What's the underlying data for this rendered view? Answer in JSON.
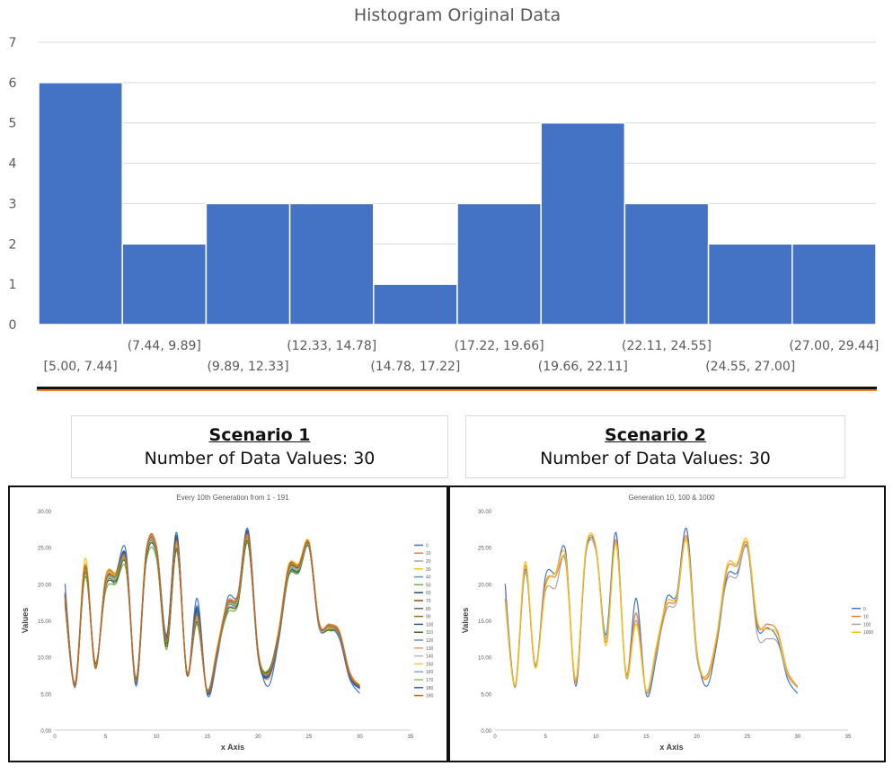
{
  "chart_data": [
    {
      "type": "bar",
      "title": "Histogram Original Data",
      "categories": [
        "[5.00, 7.44]",
        "(7.44, 9.89]",
        "(9.89, 12.33]",
        "(12.33, 14.78]",
        "(14.78, 17.22]",
        "(17.22, 19.66]",
        "(19.66, 22.11]",
        "(22.11, 24.55]",
        "(24.55, 27.00]",
        "(27.00, 29.44]"
      ],
      "values": [
        6,
        2,
        3,
        3,
        1,
        3,
        5,
        3,
        2,
        2
      ],
      "ylim": [
        0,
        7
      ],
      "yticks": [
        0,
        1,
        2,
        3,
        4,
        5,
        6,
        7
      ],
      "bar_color": "#4472c4",
      "grid": true,
      "legend": "none"
    },
    {
      "type": "line",
      "title": "Every 10th Generation from 1 - 191",
      "xlabel": "x Axis",
      "ylabel": "Values",
      "xlim": [
        0,
        35
      ],
      "ylim": [
        0,
        30
      ],
      "xticks": [
        0,
        5,
        10,
        15,
        20,
        25,
        30,
        35
      ],
      "yticks": [
        "0.00",
        "5.00",
        "10.00",
        "15.00",
        "20.00",
        "25.00",
        "30.00"
      ],
      "legend": "right",
      "x": [
        1,
        2,
        3,
        4,
        5,
        6,
        7,
        8,
        9,
        10,
        11,
        12,
        13,
        14,
        15,
        16,
        17,
        18,
        19,
        20,
        21,
        22,
        23,
        24,
        25,
        26,
        27,
        28,
        29,
        30
      ],
      "series": [
        {
          "name": "0",
          "color": "#4472c4",
          "values": [
            20,
            6,
            22,
            8.5,
            21,
            21.5,
            24.5,
            6,
            24,
            25,
            13,
            27,
            7.5,
            18,
            4.8,
            10,
            18,
            18.5,
            27.5,
            11,
            6,
            12,
            21,
            21.5,
            25,
            14,
            14,
            12.5,
            7,
            5
          ]
        },
        {
          "name": "10",
          "color": "#ed7d31",
          "values": [
            18,
            6,
            22.5,
            8.8,
            20,
            21,
            23,
            6.5,
            24.5,
            25,
            12,
            26,
            7.8,
            16,
            5.2,
            11,
            17,
            18,
            26.5,
            10.5,
            7,
            12.5,
            22,
            22.5,
            25.5,
            14.5,
            14.5,
            13.5,
            8,
            6
          ]
        },
        {
          "name": "20",
          "color": "#a5a5a5",
          "values": [
            19,
            5.8,
            21.5,
            9,
            19.5,
            20.5,
            23.5,
            7,
            24,
            24.5,
            12.5,
            25.5,
            8,
            15.5,
            5,
            10.5,
            16.5,
            17.5,
            26.8,
            10,
            7.5,
            13,
            21.5,
            22,
            25.2,
            14,
            14,
            13,
            7.5,
            5.8
          ]
        },
        {
          "name": "30",
          "color": "#ffc000",
          "values": [
            17.5,
            6.2,
            23.5,
            8.5,
            21,
            21.5,
            22.5,
            6.8,
            24.5,
            24.8,
            11.5,
            25,
            7.5,
            15,
            5.4,
            11.5,
            17.5,
            18.2,
            26,
            10.8,
            8,
            13.5,
            22.5,
            22.8,
            25.8,
            14.8,
            13.8,
            13.2,
            7.8,
            6.2
          ]
        },
        {
          "name": "40",
          "color": "#5b9bd5",
          "values": [
            18.5,
            6,
            22,
            8.8,
            20.5,
            20,
            23,
            6,
            23.5,
            24,
            12,
            26.5,
            7.5,
            17,
            5,
            10.5,
            17,
            17.8,
            27,
            10.2,
            7.2,
            12.2,
            21.2,
            21.8,
            25.4,
            14.2,
            14.2,
            12.8,
            7.2,
            5.6
          ]
        },
        {
          "name": "50",
          "color": "#70ad47",
          "values": [
            17,
            6.5,
            21,
            9.2,
            19,
            20,
            22,
            7.2,
            23,
            23.5,
            11,
            24.5,
            8,
            14.5,
            5.5,
            11,
            16,
            17,
            25.5,
            10.5,
            8.2,
            13,
            21,
            21.5,
            25,
            14.4,
            13.6,
            13,
            7.6,
            6
          ]
        },
        {
          "name": "60",
          "color": "#264478",
          "values": [
            18.2,
            6.2,
            22.2,
            8.6,
            20.2,
            21,
            23.6,
            6.4,
            24.2,
            24.8,
            12.4,
            26.2,
            7.6,
            16.5,
            5,
            10.8,
            17.2,
            18,
            26.6,
            10.4,
            7.4,
            12.6,
            21.8,
            22.2,
            25.3,
            14.3,
            14.3,
            13.1,
            7.4,
            5.8
          ]
        },
        {
          "name": "70",
          "color": "#9e480e",
          "values": [
            17.8,
            6,
            22.6,
            8.4,
            20.8,
            21.2,
            23.2,
            6.6,
            24.6,
            25.2,
            12.2,
            25.8,
            7.8,
            15.8,
            5.2,
            11.2,
            17.4,
            18.4,
            26.9,
            10.6,
            7.6,
            12.8,
            22.2,
            22.6,
            25.6,
            14.6,
            14.4,
            13.4,
            7.8,
            6
          ]
        },
        {
          "name": "80",
          "color": "#636363",
          "values": [
            18.8,
            5.9,
            21.8,
            8.9,
            19.8,
            20.6,
            23.4,
            6.8,
            23.8,
            24.4,
            12.6,
            25.6,
            7.9,
            15.2,
            5.1,
            10.6,
            16.8,
            17.6,
            26.4,
            10.3,
            7.8,
            12.9,
            21.4,
            21.9,
            25.1,
            14.1,
            14.1,
            13,
            7.5,
            5.9
          ]
        },
        {
          "name": "90",
          "color": "#997300",
          "values": [
            18.4,
            6.3,
            22.4,
            8.7,
            20.4,
            21.4,
            22.8,
            6.7,
            24.4,
            24.9,
            11.8,
            25.4,
            7.7,
            15.6,
            5.3,
            11.3,
            17.6,
            18.1,
            26.2,
            10.7,
            7.9,
            13.2,
            22.4,
            22.4,
            25.7,
            14.7,
            14,
            13.3,
            7.7,
            6.1
          ]
        },
        {
          "name": "100",
          "color": "#255e91",
          "values": [
            18.6,
            6.1,
            22.1,
            8.6,
            20.1,
            20.9,
            23.8,
            6.3,
            24.3,
            24.7,
            12.8,
            26.6,
            7.6,
            16.8,
            5,
            10.7,
            17.1,
            17.9,
            27.2,
            10.1,
            7.3,
            12.4,
            21.6,
            22.1,
            25.5,
            14.4,
            14.2,
            12.9,
            7.3,
            5.7
          ]
        },
        {
          "name": "110",
          "color": "#43682b",
          "values": [
            17.6,
            6.4,
            21.6,
            9.1,
            19.6,
            20.3,
            22.6,
            7,
            23.4,
            24.2,
            11.4,
            24.8,
            7.9,
            14.8,
            5.4,
            11.1,
            16.4,
            17.3,
            25.8,
            10.4,
            8,
            13.1,
            21.3,
            21.7,
            25.1,
            14.3,
            13.7,
            13.1,
            7.6,
            6
          ]
        },
        {
          "name": "120",
          "color": "#698ed0",
          "values": [
            18.1,
            6.2,
            22.3,
            8.7,
            20.3,
            21.1,
            23.3,
            6.5,
            24.1,
            24.6,
            12.1,
            25.9,
            7.7,
            15.9,
            5.1,
            10.9,
            17.3,
            18,
            26.7,
            10.5,
            7.5,
            12.7,
            21.9,
            22.3,
            25.4,
            14.5,
            14.3,
            13.2,
            7.5,
            5.9
          ]
        },
        {
          "name": "130",
          "color": "#f1975a",
          "values": [
            18.3,
            6.1,
            22.7,
            8.5,
            20.7,
            21.3,
            23.1,
            6.6,
            24.5,
            25.1,
            12.3,
            25.7,
            7.7,
            15.7,
            5.2,
            11.2,
            17.5,
            18.3,
            26.8,
            10.6,
            7.7,
            12.9,
            22.1,
            22.5,
            25.6,
            14.6,
            14.4,
            13.3,
            7.7,
            6
          ]
        },
        {
          "name": "140",
          "color": "#b7b7b7",
          "values": [
            18.7,
            6,
            21.9,
            8.8,
            19.9,
            20.7,
            23.5,
            6.7,
            23.9,
            24.5,
            12.5,
            25.5,
            7.8,
            15.3,
            5.1,
            10.7,
            16.9,
            17.7,
            26.5,
            10.3,
            7.7,
            12.8,
            21.5,
            22,
            25.2,
            14.2,
            14.1,
            13,
            7.5,
            5.9
          ]
        },
        {
          "name": "150",
          "color": "#ffcd33",
          "values": [
            18.5,
            6.2,
            22.5,
            8.6,
            20.6,
            21.2,
            23,
            6.6,
            24.3,
            24.9,
            12.2,
            25.8,
            7.7,
            15.7,
            5.2,
            11.1,
            17.3,
            18.2,
            26.7,
            10.5,
            7.6,
            12.8,
            22,
            22.4,
            25.5,
            14.5,
            14.3,
            13.2,
            7.6,
            6
          ]
        },
        {
          "name": "160",
          "color": "#7cafdd",
          "values": [
            18.4,
            6.1,
            22.2,
            8.7,
            20.3,
            21,
            23.3,
            6.5,
            24.2,
            24.7,
            12.3,
            26,
            7.7,
            16,
            5.1,
            10.8,
            17.2,
            18,
            26.7,
            10.4,
            7.5,
            12.6,
            21.8,
            22.2,
            25.4,
            14.4,
            14.3,
            13.1,
            7.5,
            5.9
          ]
        },
        {
          "name": "170",
          "color": "#8cc168",
          "values": [
            18.2,
            6.3,
            22.1,
            8.8,
            20.1,
            20.8,
            23.1,
            6.7,
            24,
            24.5,
            12.1,
            25.6,
            7.8,
            15.5,
            5.2,
            10.9,
            17,
            17.8,
            26.4,
            10.4,
            7.7,
            12.8,
            21.7,
            22.1,
            25.3,
            14.4,
            14.1,
            13.1,
            7.6,
            6
          ]
        },
        {
          "name": "180",
          "color": "#335aa1",
          "values": [
            18.6,
            6.1,
            22.4,
            8.6,
            20.4,
            21.1,
            23.4,
            6.5,
            24.3,
            24.8,
            12.4,
            26.1,
            7.6,
            16.2,
            5.1,
            10.8,
            17.3,
            18.1,
            26.8,
            10.4,
            7.4,
            12.6,
            21.9,
            22.3,
            25.4,
            14.4,
            14.3,
            13.1,
            7.4,
            5.8
          ]
        },
        {
          "name": "190",
          "color": "#d26012",
          "values": [
            18.3,
            6.2,
            22.3,
            8.6,
            20.3,
            21.1,
            23.2,
            6.6,
            24.2,
            24.8,
            12.2,
            25.9,
            7.7,
            15.8,
            5.2,
            11,
            17.3,
            18.1,
            26.7,
            10.5,
            7.6,
            12.8,
            22,
            22.4,
            25.5,
            14.5,
            14.3,
            13.2,
            7.6,
            6
          ]
        }
      ]
    },
    {
      "type": "line",
      "title": "Generation 10, 100 & 1000",
      "xlabel": "x Axis",
      "ylabel": "Values",
      "xlim": [
        0,
        35
      ],
      "ylim": [
        0,
        30
      ],
      "xticks": [
        0,
        5,
        10,
        15,
        20,
        25,
        30,
        35
      ],
      "yticks": [
        "0.00",
        "5.00",
        "10.00",
        "15.00",
        "20.00",
        "25.00",
        "30.00"
      ],
      "legend": "right",
      "x": [
        1,
        2,
        3,
        4,
        5,
        6,
        7,
        8,
        9,
        10,
        11,
        12,
        13,
        14,
        15,
        16,
        17,
        18,
        19,
        20,
        21,
        22,
        23,
        24,
        25,
        26,
        27,
        28,
        29,
        30
      ],
      "series": [
        {
          "name": "0",
          "color": "#4472c4",
          "values": [
            20,
            6,
            22,
            8.5,
            21,
            21.5,
            24.5,
            6,
            24,
            25,
            13,
            27,
            7.5,
            18,
            4.8,
            10,
            18,
            18.5,
            27.5,
            11,
            6,
            12,
            21,
            21.5,
            25,
            14,
            14,
            12.5,
            7,
            5
          ]
        },
        {
          "name": "10",
          "color": "#ed7d31",
          "values": [
            18,
            6,
            22.5,
            8.8,
            20,
            21,
            23,
            6.5,
            24.5,
            25,
            12,
            26,
            7.8,
            16,
            5.2,
            11,
            17,
            18,
            26.5,
            10.5,
            7,
            12.5,
            22,
            22.5,
            25.5,
            14.5,
            14.5,
            13.5,
            8,
            6
          ]
        },
        {
          "name": "100",
          "color": "#a5a5a5",
          "values": [
            19,
            5.8,
            21.5,
            9,
            19,
            19.5,
            23.5,
            7,
            24,
            24.5,
            12.5,
            25.5,
            7.2,
            15,
            5,
            10.5,
            16.5,
            17.5,
            26,
            10,
            7.5,
            13,
            20.5,
            21,
            25.2,
            13,
            12.5,
            12,
            7.5,
            5.8
          ]
        },
        {
          "name": "1000",
          "color": "#ffc000",
          "values": [
            17.5,
            6.2,
            23,
            8.5,
            19.5,
            21.5,
            23.8,
            6.8,
            24.8,
            25.2,
            11.5,
            25.5,
            7.5,
            14.5,
            5.4,
            11.5,
            17.5,
            18.2,
            26,
            10.8,
            7.2,
            13.2,
            22.5,
            22.8,
            26,
            15,
            13.8,
            13.2,
            7.8,
            6
          ]
        }
      ]
    }
  ],
  "scenarios": [
    {
      "heading": "Scenario 1",
      "detail": "Number of Data Values: 30"
    },
    {
      "heading": "Scenario 2",
      "detail": "Number of Data Values: 30"
    }
  ],
  "colors": {
    "divider_top": "#111111",
    "divider_bottom": "#ed7d31",
    "grid": "#d9d9d9"
  }
}
